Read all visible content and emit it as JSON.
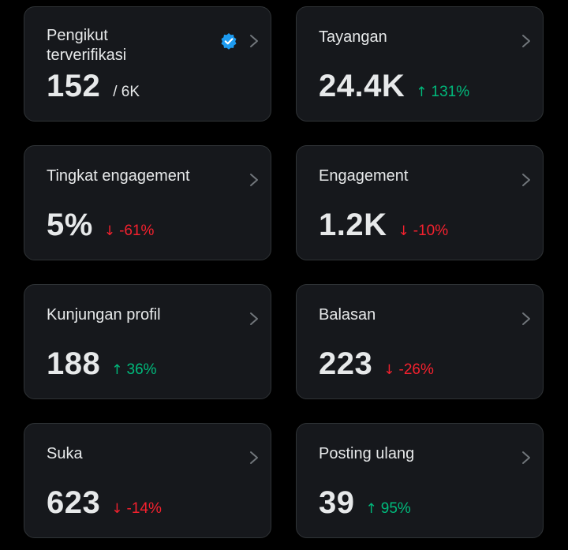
{
  "cards": [
    {
      "title": "Pengikut\nterverifikasi",
      "value": "152",
      "suffix": "/ 6K",
      "verified": true
    },
    {
      "title": "Tayangan",
      "value": "24.4K",
      "delta": "131%",
      "direction": "up"
    },
    {
      "title": "Tingkat engagement",
      "value": "5%",
      "delta": "-61%",
      "direction": "down"
    },
    {
      "title": "Engagement",
      "value": "1.2K",
      "delta": "-10%",
      "direction": "down"
    },
    {
      "title": "Kunjungan profil",
      "value": "188",
      "delta": "36%",
      "direction": "up"
    },
    {
      "title": "Balasan",
      "value": "223",
      "delta": "-26%",
      "direction": "down"
    },
    {
      "title": "Suka",
      "value": "623",
      "delta": "-14%",
      "direction": "down"
    },
    {
      "title": "Posting ulang",
      "value": "39",
      "delta": "95%",
      "direction": "up"
    }
  ],
  "icons": {
    "arrow_up": "↑",
    "arrow_down": "↓",
    "chevron": "chevron-right-icon",
    "verified": "verified-badge-icon"
  },
  "colors": {
    "background": "#000000",
    "card": "#16181c",
    "positive": "#00ba7c",
    "negative": "#f4212e",
    "verified": "#1d9bf0"
  }
}
